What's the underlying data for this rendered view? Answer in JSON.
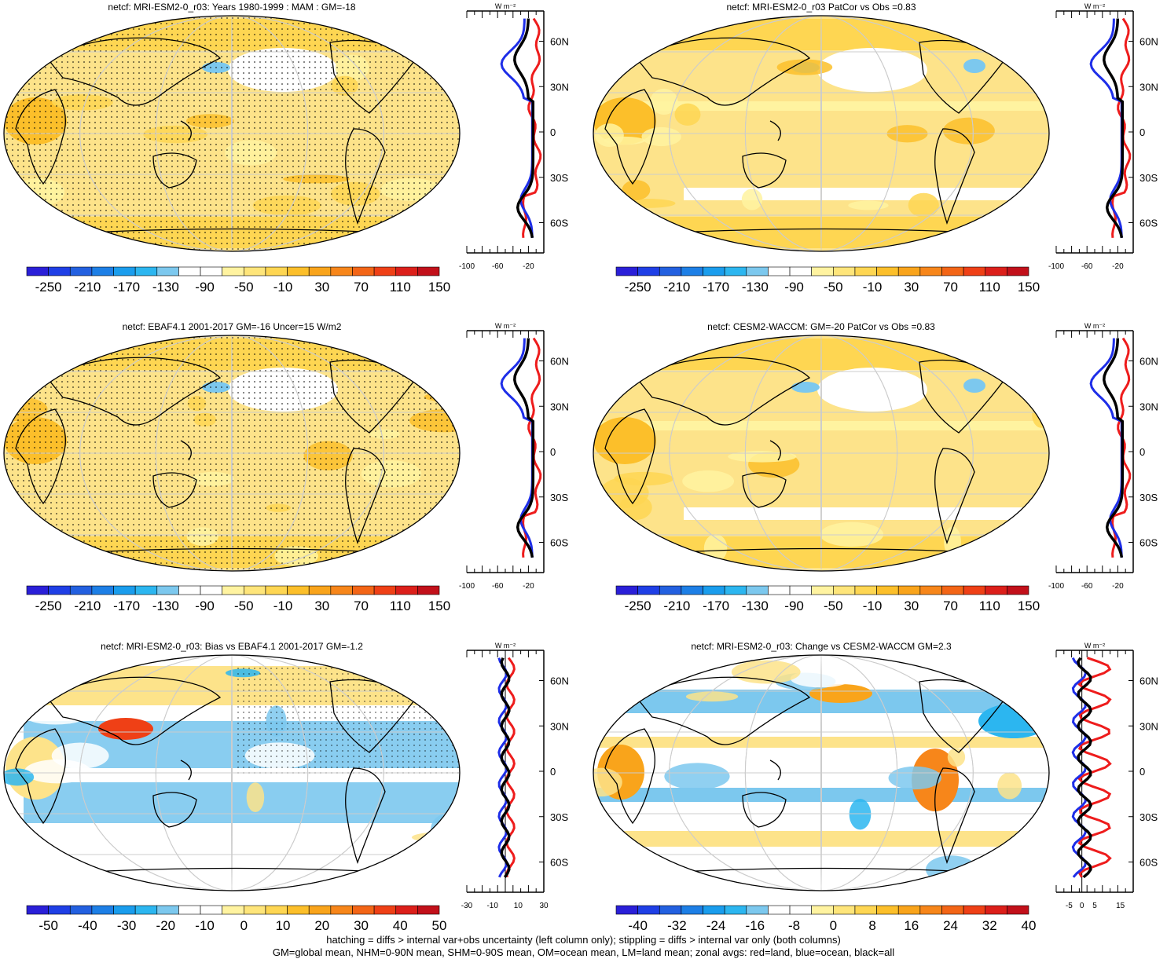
{
  "panels": [
    {
      "title": "netcf: MRI-ESM2-0_r03: Years 1980-1999 : MAM : GM=-18",
      "colorbar": {
        "labels": [
          "-250",
          "-210",
          "-170",
          "-130",
          "-90",
          "-50",
          "-10",
          "30",
          "70",
          "110",
          "150"
        ]
      },
      "zonal": {
        "xticks": [
          "-100",
          "-60",
          "-20"
        ],
        "xrange": [
          -100,
          0
        ],
        "unit": "W m⁻²"
      }
    },
    {
      "title": "netcf: MRI-ESM2-0_r03 PatCor vs Obs =0.83",
      "colorbar": {
        "labels": [
          "-250",
          "-210",
          "-170",
          "-130",
          "-90",
          "-50",
          "-10",
          "30",
          "70",
          "110",
          "150"
        ]
      },
      "zonal": {
        "xticks": [
          "-100",
          "-60",
          "-20"
        ],
        "xrange": [
          -100,
          0
        ],
        "unit": "W m⁻²"
      }
    },
    {
      "title": "netcf: EBAF4.1 2001-2017 GM=-16 Uncer=15 W/m2",
      "colorbar": {
        "labels": [
          "-250",
          "-210",
          "-170",
          "-130",
          "-90",
          "-50",
          "-10",
          "30",
          "70",
          "110",
          "150"
        ]
      },
      "zonal": {
        "xticks": [
          "-100",
          "-60",
          "-20"
        ],
        "xrange": [
          -100,
          0
        ],
        "unit": "W m⁻²"
      }
    },
    {
      "title": "netcf: CESM2-WACCM: GM=-20 PatCor vs Obs =0.83",
      "colorbar": {
        "labels": [
          "-250",
          "-210",
          "-170",
          "-130",
          "-90",
          "-50",
          "-10",
          "30",
          "70",
          "110",
          "150"
        ]
      },
      "zonal": {
        "xticks": [
          "-100",
          "-60",
          "-20"
        ],
        "xrange": [
          -100,
          0
        ],
        "unit": "W m⁻²"
      }
    },
    {
      "title": "netcf: MRI-ESM2-0_r03: Bias vs EBAF4.1 2001-2017 GM=-1.2",
      "colorbar": {
        "labels": [
          "-50",
          "-40",
          "-30",
          "-20",
          "-10",
          "0",
          "10",
          "20",
          "30",
          "40",
          "50"
        ]
      },
      "zonal": {
        "xticks": [
          "-30",
          "-10",
          "10",
          "30"
        ],
        "xrange": [
          -30,
          30
        ],
        "unit": "W m⁻²"
      }
    },
    {
      "title": "netcf: MRI-ESM2-0_r03: Change vs CESM2-WACCM GM=2.3",
      "colorbar": {
        "labels": [
          "-40",
          "-32",
          "-24",
          "-16",
          "-8",
          "0",
          "8",
          "16",
          "24",
          "32",
          "40"
        ]
      },
      "zonal": {
        "xticks": [
          "-5",
          "0",
          "5",
          "15"
        ],
        "xrange": [
          -10,
          20
        ],
        "unit": "W m⁻²"
      }
    }
  ],
  "lat_labels": [
    "60N",
    "30N",
    "0",
    "30S",
    "60S"
  ],
  "colors": {
    "palette": [
      "#2a1fd8",
      "#1f3fe6",
      "#2360e0",
      "#1d7fe6",
      "#1a9ded",
      "#2cb6f0",
      "#7cc8ee",
      "#ffffff",
      "#ffffff",
      "#fff3a0",
      "#fee57a",
      "#fed652",
      "#fcbf2a",
      "#f9a41b",
      "#f7861a",
      "#f36516",
      "#ef4016",
      "#dc1f1a",
      "#c2101a"
    ],
    "land_line": "#000000",
    "zonal_land": "#ee1c1c",
    "zonal_ocean": "#1e2ee8",
    "zonal_all": "#000000"
  },
  "footer": {
    "line1": "hatching = diffs > internal var+obs uncertainty (left column only); stippling = diffs > internal var only (both columns)",
    "line2": "GM=global mean, NHM=0-90N mean, SHM=0-90S mean, OM=ocean mean, LM=land mean; zonal avgs: red=land, blue=ocean, black=all"
  }
}
